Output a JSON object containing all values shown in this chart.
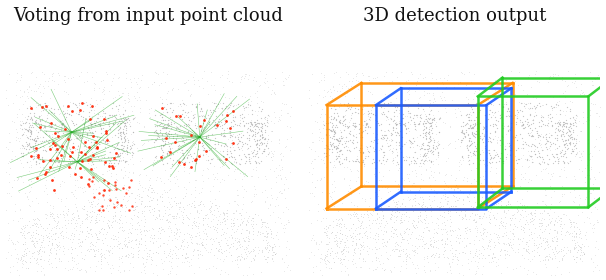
{
  "title_left": "Voting from input point cloud",
  "title_right": "3D detection output",
  "title_fontsize": 13,
  "title_color": "#111111",
  "bg_color": "#ffffff",
  "figsize": [
    6.06,
    2.8
  ],
  "dpi": 100,
  "vote_line_color": "#22aa22",
  "seed_color": "#ff2200",
  "box_colors": [
    "#ff8c00",
    "#1a5cff",
    "#22cc22"
  ]
}
